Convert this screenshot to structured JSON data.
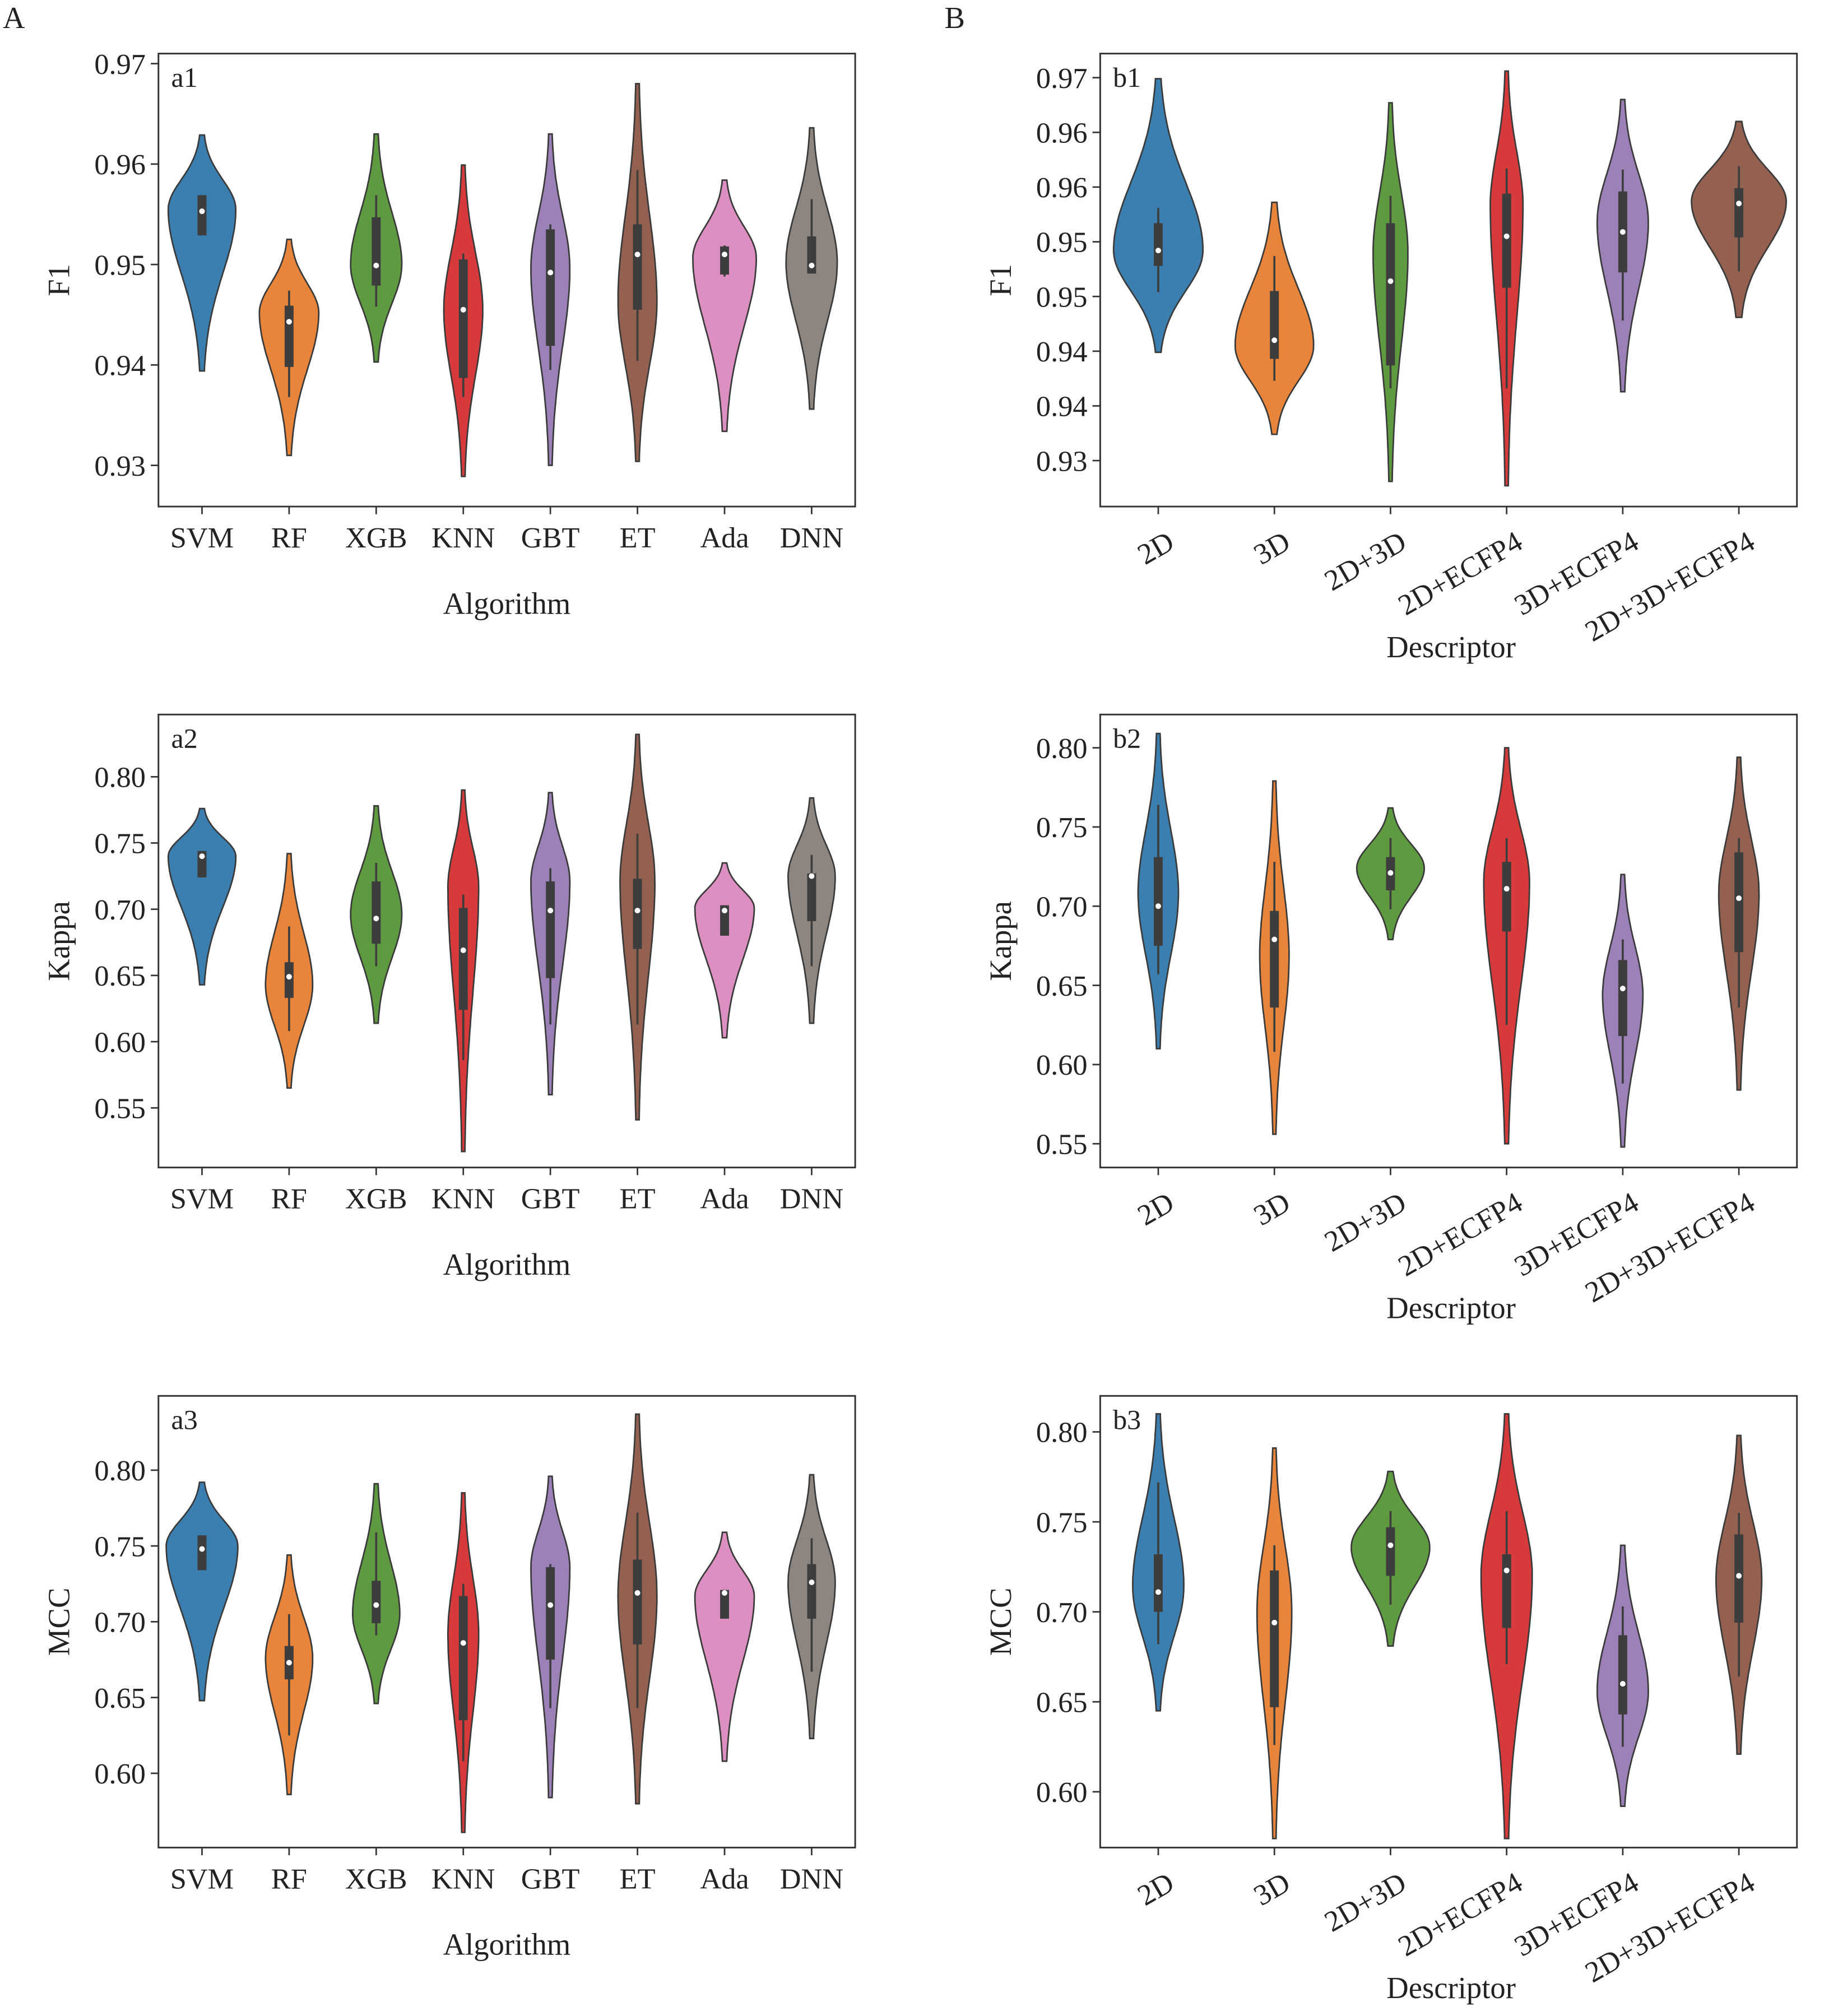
{
  "figure_labels": {
    "left": "A",
    "right": "B"
  },
  "colors": [
    "#3b7eb0",
    "#e8853a",
    "#5e9a3f",
    "#d63a3a",
    "#9b81b8",
    "#94604f",
    "#dc8fc0",
    "#8c8580"
  ],
  "chart_data": [
    {
      "id": "a1",
      "type": "violin",
      "panel_label": "a1",
      "xlabel": "Algorithm",
      "ylabel": "F1",
      "categories": [
        "SVM",
        "RF",
        "XGB",
        "KNN",
        "GBT",
        "ET",
        "Ada",
        "DNN"
      ],
      "ylim": [
        0.9259,
        0.971
      ],
      "ticks": [
        0.97,
        0.96,
        0.95,
        0.94,
        0.93
      ],
      "tick_labels": [
        "0.97",
        "0.96",
        "0.95",
        "0.94",
        "0.93"
      ],
      "violins": [
        {
          "min": 0.9394,
          "max": 0.9629,
          "peak": 0.9555,
          "density": 0.8,
          "q1": 0.9529,
          "median": 0.9553,
          "q3": 0.9569,
          "whisker_low": 0.9529,
          "whisker_high": 0.9569
        },
        {
          "min": 0.931,
          "max": 0.9525,
          "peak": 0.9452,
          "density": 0.7,
          "q1": 0.9398,
          "median": 0.9443,
          "q3": 0.9459,
          "whisker_low": 0.9368,
          "whisker_high": 0.9474
        },
        {
          "min": 0.9403,
          "max": 0.963,
          "peak": 0.95,
          "density": 0.6,
          "q1": 0.9479,
          "median": 0.9499,
          "q3": 0.9547,
          "whisker_low": 0.9458,
          "whisker_high": 0.9569
        },
        {
          "min": 0.9289,
          "max": 0.9599,
          "peak": 0.9455,
          "density": 0.45,
          "q1": 0.9387,
          "median": 0.9455,
          "q3": 0.9505,
          "whisker_low": 0.9368,
          "whisker_high": 0.9511
        },
        {
          "min": 0.93,
          "max": 0.963,
          "peak": 0.9496,
          "density": 0.45,
          "q1": 0.9419,
          "median": 0.9492,
          "q3": 0.9535,
          "whisker_low": 0.9395,
          "whisker_high": 0.954
        },
        {
          "min": 0.9304,
          "max": 0.968,
          "peak": 0.9463,
          "density": 0.45,
          "q1": 0.9455,
          "median": 0.951,
          "q3": 0.954,
          "whisker_low": 0.9404,
          "whisker_high": 0.9594
        },
        {
          "min": 0.9334,
          "max": 0.9584,
          "peak": 0.9507,
          "density": 0.75,
          "q1": 0.949,
          "median": 0.951,
          "q3": 0.9518,
          "whisker_low": 0.9488,
          "whisker_high": 0.9519
        },
        {
          "min": 0.9356,
          "max": 0.9636,
          "peak": 0.9502,
          "density": 0.6,
          "q1": 0.9491,
          "median": 0.9499,
          "q3": 0.9528,
          "whisker_low": 0.9491,
          "whisker_high": 0.9565
        }
      ]
    },
    {
      "id": "b1",
      "type": "violin",
      "panel_label": "b1",
      "xlabel": "Descriptor",
      "ylabel": "F1",
      "categories": [
        "2D",
        "3D",
        "2D+3D",
        "2D+ECFP4",
        "3D+ECFP4",
        "2D+3D+ECFP4"
      ],
      "ylim": [
        0.9258,
        0.9672
      ],
      "ticks": [
        0.965,
        0.96,
        0.955,
        0.95,
        0.945,
        0.94,
        0.935,
        0.93
      ],
      "tick_labels": [
        "0.97",
        "0.96",
        "0.96",
        "0.95",
        "0.95",
        "0.94",
        "0.94",
        "0.93"
      ],
      "violins": [
        {
          "min": 0.9399,
          "max": 0.9649,
          "peak": 0.9492,
          "density": 0.8,
          "q1": 0.9478,
          "median": 0.9492,
          "q3": 0.9517,
          "whisker_low": 0.9454,
          "whisker_high": 0.9531
        },
        {
          "min": 0.9324,
          "max": 0.9536,
          "peak": 0.9405,
          "density": 0.7,
          "q1": 0.9393,
          "median": 0.941,
          "q3": 0.9455,
          "whisker_low": 0.9373,
          "whisker_high": 0.9487
        },
        {
          "min": 0.9281,
          "max": 0.9627,
          "peak": 0.949,
          "density": 0.3,
          "q1": 0.9387,
          "median": 0.9464,
          "q3": 0.9517,
          "whisker_low": 0.9366,
          "whisker_high": 0.9542
        },
        {
          "min": 0.9277,
          "max": 0.9656,
          "peak": 0.9533,
          "density": 0.28,
          "q1": 0.9458,
          "median": 0.9505,
          "q3": 0.9544,
          "whisker_low": 0.9366,
          "whisker_high": 0.9567
        },
        {
          "min": 0.9363,
          "max": 0.963,
          "peak": 0.9518,
          "density": 0.45,
          "q1": 0.9472,
          "median": 0.9509,
          "q3": 0.9546,
          "whisker_low": 0.9428,
          "whisker_high": 0.9566
        },
        {
          "min": 0.9431,
          "max": 0.961,
          "peak": 0.9537,
          "density": 0.85,
          "q1": 0.9504,
          "median": 0.9535,
          "q3": 0.9549,
          "whisker_low": 0.9473,
          "whisker_high": 0.9569
        }
      ]
    },
    {
      "id": "a2",
      "type": "violin",
      "panel_label": "a2",
      "xlabel": "Algorithm",
      "ylabel": "Kappa",
      "categories": [
        "SVM",
        "RF",
        "XGB",
        "KNN",
        "GBT",
        "ET",
        "Ada",
        "DNN"
      ],
      "ylim": [
        0.505,
        0.847
      ],
      "ticks": [
        0.8,
        0.75,
        0.7,
        0.65,
        0.6,
        0.55
      ],
      "tick_labels": [
        "0.80",
        "0.75",
        "0.70",
        "0.65",
        "0.60",
        "0.55"
      ],
      "violins": [
        {
          "min": 0.643,
          "max": 0.776,
          "peak": 0.74,
          "density": 0.8,
          "q1": 0.724,
          "median": 0.74,
          "q3": 0.744,
          "whisker_low": 0.724,
          "whisker_high": 0.744
        },
        {
          "min": 0.565,
          "max": 0.742,
          "peak": 0.643,
          "density": 0.55,
          "q1": 0.633,
          "median": 0.649,
          "q3": 0.66,
          "whisker_low": 0.608,
          "whisker_high": 0.687
        },
        {
          "min": 0.614,
          "max": 0.778,
          "peak": 0.696,
          "density": 0.6,
          "q1": 0.674,
          "median": 0.693,
          "q3": 0.721,
          "whisker_low": 0.657,
          "whisker_high": 0.735
        },
        {
          "min": 0.517,
          "max": 0.79,
          "peak": 0.717,
          "density": 0.35,
          "q1": 0.624,
          "median": 0.669,
          "q3": 0.701,
          "whisker_low": 0.586,
          "whisker_high": 0.711
        },
        {
          "min": 0.56,
          "max": 0.788,
          "peak": 0.721,
          "density": 0.45,
          "q1": 0.648,
          "median": 0.699,
          "q3": 0.721,
          "whisker_low": 0.613,
          "whisker_high": 0.731
        },
        {
          "min": 0.541,
          "max": 0.832,
          "peak": 0.721,
          "density": 0.4,
          "q1": 0.67,
          "median": 0.699,
          "q3": 0.723,
          "whisker_low": 0.613,
          "whisker_high": 0.757
        },
        {
          "min": 0.603,
          "max": 0.735,
          "peak": 0.701,
          "density": 0.7,
          "q1": 0.68,
          "median": 0.699,
          "q3": 0.703,
          "whisker_low": 0.68,
          "whisker_high": 0.703
        },
        {
          "min": 0.614,
          "max": 0.784,
          "peak": 0.725,
          "density": 0.55,
          "q1": 0.691,
          "median": 0.725,
          "q3": 0.727,
          "whisker_low": 0.657,
          "whisker_high": 0.741
        }
      ]
    },
    {
      "id": "b2",
      "type": "violin",
      "panel_label": "b2",
      "xlabel": "Descriptor",
      "ylabel": "Kappa",
      "categories": [
        "2D",
        "3D",
        "2D+3D",
        "2D+ECFP4",
        "3D+ECFP4",
        "2D+3D+ECFP4"
      ],
      "ylim": [
        0.535,
        0.821
      ],
      "ticks": [
        0.8,
        0.75,
        0.7,
        0.65,
        0.6,
        0.55
      ],
      "tick_labels": [
        "0.80",
        "0.75",
        "0.70",
        "0.65",
        "0.60",
        "0.55"
      ],
      "violins": [
        {
          "min": 0.61,
          "max": 0.809,
          "peak": 0.708,
          "density": 0.35,
          "q1": 0.675,
          "median": 0.7,
          "q3": 0.731,
          "whisker_low": 0.657,
          "whisker_high": 0.764
        },
        {
          "min": 0.556,
          "max": 0.779,
          "peak": 0.668,
          "density": 0.25,
          "q1": 0.636,
          "median": 0.679,
          "q3": 0.697,
          "whisker_low": 0.608,
          "whisker_high": 0.728
        },
        {
          "min": 0.679,
          "max": 0.762,
          "peak": 0.724,
          "density": 0.6,
          "q1": 0.71,
          "median": 0.721,
          "q3": 0.731,
          "whisker_low": 0.698,
          "whisker_high": 0.743
        },
        {
          "min": 0.55,
          "max": 0.8,
          "peak": 0.715,
          "density": 0.4,
          "q1": 0.684,
          "median": 0.711,
          "q3": 0.728,
          "whisker_low": 0.625,
          "whisker_high": 0.743
        },
        {
          "min": 0.548,
          "max": 0.72,
          "peak": 0.644,
          "density": 0.35,
          "q1": 0.618,
          "median": 0.648,
          "q3": 0.666,
          "whisker_low": 0.588,
          "whisker_high": 0.679
        },
        {
          "min": 0.584,
          "max": 0.794,
          "peak": 0.708,
          "density": 0.35,
          "q1": 0.671,
          "median": 0.705,
          "q3": 0.734,
          "whisker_low": 0.636,
          "whisker_high": 0.743
        }
      ]
    },
    {
      "id": "a3",
      "type": "violin",
      "panel_label": "a3",
      "xlabel": "Algorithm",
      "ylabel": "MCC",
      "categories": [
        "SVM",
        "RF",
        "XGB",
        "KNN",
        "GBT",
        "ET",
        "Ada",
        "DNN"
      ],
      "ylim": [
        0.551,
        0.849
      ],
      "ticks": [
        0.8,
        0.75,
        0.7,
        0.65,
        0.6
      ],
      "tick_labels": [
        "0.80",
        "0.75",
        "0.70",
        "0.65",
        "0.60"
      ],
      "violins": [
        {
          "min": 0.648,
          "max": 0.792,
          "peak": 0.75,
          "density": 0.85,
          "q1": 0.734,
          "median": 0.748,
          "q3": 0.757,
          "whisker_low": 0.734,
          "whisker_high": 0.757
        },
        {
          "min": 0.586,
          "max": 0.744,
          "peak": 0.676,
          "density": 0.55,
          "q1": 0.662,
          "median": 0.673,
          "q3": 0.684,
          "whisker_low": 0.625,
          "whisker_high": 0.705
        },
        {
          "min": 0.646,
          "max": 0.791,
          "peak": 0.705,
          "density": 0.55,
          "q1": 0.699,
          "median": 0.711,
          "q3": 0.727,
          "whisker_low": 0.691,
          "whisker_high": 0.759
        },
        {
          "min": 0.561,
          "max": 0.785,
          "peak": 0.692,
          "density": 0.35,
          "q1": 0.635,
          "median": 0.686,
          "q3": 0.717,
          "whisker_low": 0.608,
          "whisker_high": 0.725
        },
        {
          "min": 0.584,
          "max": 0.796,
          "peak": 0.736,
          "density": 0.45,
          "q1": 0.675,
          "median": 0.711,
          "q3": 0.736,
          "whisker_low": 0.643,
          "whisker_high": 0.738
        },
        {
          "min": 0.58,
          "max": 0.837,
          "peak": 0.717,
          "density": 0.45,
          "q1": 0.685,
          "median": 0.719,
          "q3": 0.741,
          "whisker_low": 0.643,
          "whisker_high": 0.772
        },
        {
          "min": 0.608,
          "max": 0.759,
          "peak": 0.717,
          "density": 0.7,
          "q1": 0.702,
          "median": 0.719,
          "q3": 0.721,
          "whisker_low": 0.702,
          "whisker_high": 0.721
        },
        {
          "min": 0.623,
          "max": 0.797,
          "peak": 0.726,
          "density": 0.55,
          "q1": 0.702,
          "median": 0.726,
          "q3": 0.738,
          "whisker_low": 0.667,
          "whisker_high": 0.755
        }
      ]
    },
    {
      "id": "b3",
      "type": "violin",
      "panel_label": "b3",
      "xlabel": "Descriptor",
      "ylabel": "MCC",
      "categories": [
        "2D",
        "3D",
        "2D+3D",
        "2D+ECFP4",
        "3D+ECFP4",
        "2D+3D+ECFP4"
      ],
      "ylim": [
        0.569,
        0.82
      ],
      "ticks": [
        0.8,
        0.75,
        0.7,
        0.65,
        0.6
      ],
      "tick_labels": [
        "0.80",
        "0.75",
        "0.70",
        "0.65",
        "0.60"
      ],
      "violins": [
        {
          "min": 0.645,
          "max": 0.81,
          "peak": 0.714,
          "density": 0.45,
          "q1": 0.7,
          "median": 0.711,
          "q3": 0.732,
          "whisker_low": 0.682,
          "whisker_high": 0.772
        },
        {
          "min": 0.574,
          "max": 0.791,
          "peak": 0.7,
          "density": 0.3,
          "q1": 0.647,
          "median": 0.694,
          "q3": 0.723,
          "whisker_low": 0.626,
          "whisker_high": 0.737
        },
        {
          "min": 0.681,
          "max": 0.778,
          "peak": 0.736,
          "density": 0.7,
          "q1": 0.72,
          "median": 0.737,
          "q3": 0.747,
          "whisker_low": 0.704,
          "whisker_high": 0.756
        },
        {
          "min": 0.574,
          "max": 0.81,
          "peak": 0.72,
          "density": 0.45,
          "q1": 0.691,
          "median": 0.723,
          "q3": 0.732,
          "whisker_low": 0.671,
          "whisker_high": 0.756
        },
        {
          "min": 0.592,
          "max": 0.737,
          "peak": 0.656,
          "density": 0.45,
          "q1": 0.643,
          "median": 0.66,
          "q3": 0.687,
          "whisker_low": 0.625,
          "whisker_high": 0.703
        },
        {
          "min": 0.621,
          "max": 0.798,
          "peak": 0.718,
          "density": 0.4,
          "q1": 0.694,
          "median": 0.72,
          "q3": 0.743,
          "whisker_low": 0.664,
          "whisker_high": 0.755
        }
      ]
    }
  ]
}
